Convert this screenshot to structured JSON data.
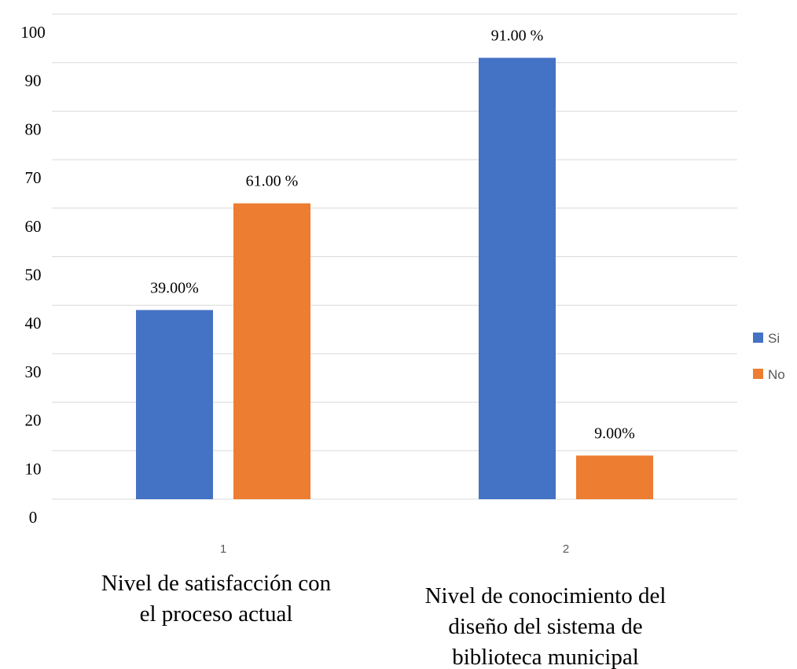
{
  "chart_data": {
    "type": "bar",
    "categories": [
      "1",
      "2"
    ],
    "category_descriptions": [
      [
        "Nivel de satisfacción con",
        "el proceso actual"
      ],
      [
        "Nivel de conocimiento del",
        "diseño del sistema de",
        "biblioteca municipal"
      ]
    ],
    "series": [
      {
        "name": "Si",
        "values": [
          39,
          91
        ],
        "labels": [
          "39.00%",
          "91.00 %"
        ],
        "color": "#4472c4"
      },
      {
        "name": "No",
        "values": [
          61,
          9
        ],
        "labels": [
          "61.00 %",
          "9.00%"
        ],
        "color": "#ed7d31"
      }
    ],
    "y_ticks": [
      "0",
      "10",
      "20",
      "30",
      "40",
      "50",
      "60",
      "70",
      "80",
      "90",
      "100"
    ],
    "ylim": [
      0,
      100
    ],
    "grid": true,
    "legend_position": "right",
    "title": "",
    "xlabel": "",
    "ylabel": ""
  }
}
